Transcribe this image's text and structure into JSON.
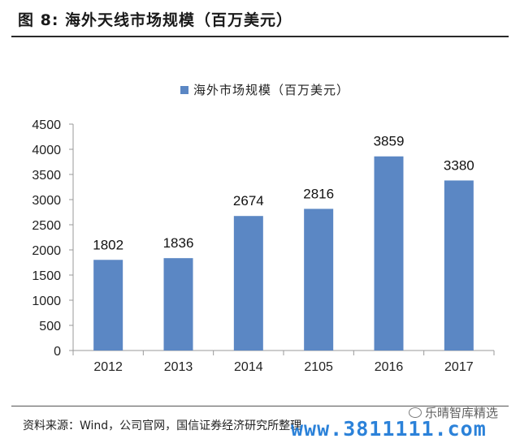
{
  "figure": {
    "title": "图 8:  海外天线市场规模（百万美元）",
    "source": "资料来源：Wind，公司官网，国信证券经济研究所整理"
  },
  "watermark": {
    "url": "www.3811111.com",
    "brand": "乐晴智库精选"
  },
  "chart_data": {
    "type": "bar",
    "categories": [
      "2012",
      "2013",
      "2014",
      "2105",
      "2016",
      "2017"
    ],
    "series": [
      {
        "name": "海外市场规模（百万美元）",
        "values": [
          1802,
          1836,
          2674,
          2816,
          3859,
          3380
        ],
        "color": "#5b87c4"
      }
    ],
    "data_labels": [
      "1802",
      "1836",
      "2674",
      "2816",
      "3859",
      "3380"
    ],
    "y_ticks": [
      "0",
      "500",
      "1000",
      "1500",
      "2000",
      "2500",
      "3000",
      "3500",
      "4000",
      "4500"
    ],
    "ylim": [
      0,
      4500
    ],
    "ytick_step": 500,
    "grid": false,
    "legend_position": "top-center"
  }
}
